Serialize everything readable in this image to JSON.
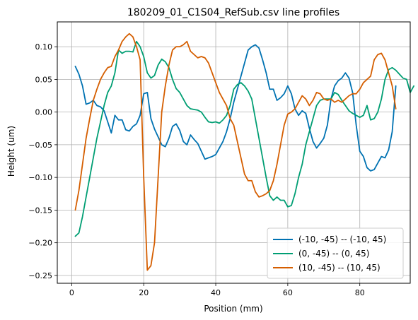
{
  "chart_data": {
    "type": "line",
    "title": "180209_01_C1S04_RefSub.csv line profiles",
    "xlabel": "Position (mm)",
    "ylabel": "Height (um)",
    "xlim": [
      -4,
      94
    ],
    "ylim": [
      -0.262,
      0.138
    ],
    "xticks": [
      0,
      20,
      40,
      60,
      80
    ],
    "xtick_labels": [
      "0",
      "20",
      "40",
      "60",
      "80"
    ],
    "yticks": [
      -0.25,
      -0.2,
      -0.15,
      -0.1,
      -0.05,
      0.0,
      0.05,
      0.1
    ],
    "ytick_labels": [
      "−0.25",
      "−0.20",
      "−0.15",
      "−0.10",
      "−0.05",
      "0.00",
      "0.05",
      "0.10"
    ],
    "grid": true,
    "legend_position": "lower-right",
    "series": [
      {
        "name": "(-10, -45) -- (-10, 45)",
        "color": "#0072B2",
        "points": [
          [
            1,
            0.07
          ],
          [
            2,
            0.058
          ],
          [
            3,
            0.04
          ],
          [
            4,
            0.012
          ],
          [
            5,
            0.014
          ],
          [
            6,
            0.018
          ],
          [
            7,
            0.01
          ],
          [
            8,
            0.008
          ],
          [
            9,
            0.002
          ],
          [
            10,
            -0.015
          ],
          [
            11,
            -0.032
          ],
          [
            12,
            -0.005
          ],
          [
            13,
            -0.012
          ],
          [
            14,
            -0.012
          ],
          [
            15,
            -0.027
          ],
          [
            16,
            -0.029
          ],
          [
            17,
            -0.022
          ],
          [
            18,
            -0.018
          ],
          [
            19,
            -0.005
          ],
          [
            20,
            0.028
          ],
          [
            21,
            0.03
          ],
          [
            22,
            -0.01
          ],
          [
            23,
            -0.026
          ],
          [
            24,
            -0.038
          ],
          [
            25,
            -0.05
          ],
          [
            26,
            -0.053
          ],
          [
            27,
            -0.04
          ],
          [
            28,
            -0.022
          ],
          [
            29,
            -0.018
          ],
          [
            30,
            -0.028
          ],
          [
            31,
            -0.045
          ],
          [
            32,
            -0.05
          ],
          [
            33,
            -0.035
          ],
          [
            34,
            -0.042
          ],
          [
            35,
            -0.048
          ],
          [
            36,
            -0.06
          ],
          [
            37,
            -0.072
          ],
          [
            38,
            -0.07
          ],
          [
            39,
            -0.068
          ],
          [
            40,
            -0.065
          ],
          [
            41,
            -0.055
          ],
          [
            42,
            -0.045
          ],
          [
            43,
            -0.03
          ],
          [
            44,
            -0.01
          ],
          [
            45,
            0.015
          ],
          [
            46,
            0.035
          ],
          [
            47,
            0.055
          ],
          [
            48,
            0.075
          ],
          [
            49,
            0.095
          ],
          [
            50,
            0.1
          ],
          [
            51,
            0.103
          ],
          [
            52,
            0.098
          ],
          [
            53,
            0.08
          ],
          [
            54,
            0.06
          ],
          [
            55,
            0.035
          ],
          [
            56,
            0.035
          ],
          [
            57,
            0.018
          ],
          [
            58,
            0.022
          ],
          [
            59,
            0.028
          ],
          [
            60,
            0.04
          ],
          [
            61,
            0.028
          ],
          [
            62,
            0.005
          ],
          [
            63,
            -0.005
          ],
          [
            64,
            0.002
          ],
          [
            65,
            -0.002
          ],
          [
            66,
            -0.025
          ],
          [
            67,
            -0.045
          ],
          [
            68,
            -0.055
          ],
          [
            69,
            -0.048
          ],
          [
            70,
            -0.04
          ],
          [
            71,
            -0.02
          ],
          [
            72,
            0.02
          ],
          [
            73,
            0.04
          ],
          [
            74,
            0.048
          ],
          [
            75,
            0.052
          ],
          [
            76,
            0.06
          ],
          [
            77,
            0.052
          ],
          [
            78,
            0.03
          ],
          [
            79,
            -0.02
          ],
          [
            80,
            -0.06
          ],
          [
            81,
            -0.068
          ],
          [
            82,
            -0.085
          ],
          [
            83,
            -0.09
          ],
          [
            84,
            -0.088
          ],
          [
            85,
            -0.078
          ],
          [
            86,
            -0.068
          ],
          [
            87,
            -0.07
          ],
          [
            88,
            -0.058
          ],
          [
            89,
            -0.03
          ],
          [
            90,
            0.04
          ]
        ]
      },
      {
        "name": "(0, -45) -- (0, 45)",
        "color": "#009E73",
        "points": [
          [
            1,
            -0.19
          ],
          [
            2,
            -0.185
          ],
          [
            3,
            -0.16
          ],
          [
            4,
            -0.13
          ],
          [
            5,
            -0.1
          ],
          [
            6,
            -0.07
          ],
          [
            7,
            -0.04
          ],
          [
            8,
            -0.015
          ],
          [
            9,
            0.01
          ],
          [
            10,
            0.03
          ],
          [
            11,
            0.04
          ],
          [
            12,
            0.06
          ],
          [
            13,
            0.095
          ],
          [
            14,
            0.09
          ],
          [
            15,
            0.093
          ],
          [
            16,
            0.093
          ],
          [
            17,
            0.092
          ],
          [
            18,
            0.108
          ],
          [
            19,
            0.1
          ],
          [
            20,
            0.085
          ],
          [
            21,
            0.06
          ],
          [
            22,
            0.052
          ],
          [
            23,
            0.056
          ],
          [
            24,
            0.072
          ],
          [
            25,
            0.081
          ],
          [
            26,
            0.077
          ],
          [
            27,
            0.068
          ],
          [
            28,
            0.05
          ],
          [
            29,
            0.036
          ],
          [
            30,
            0.03
          ],
          [
            31,
            0.02
          ],
          [
            32,
            0.01
          ],
          [
            33,
            0.005
          ],
          [
            34,
            0.004
          ],
          [
            35,
            0.003
          ],
          [
            36,
            0.0
          ],
          [
            37,
            -0.008
          ],
          [
            38,
            -0.015
          ],
          [
            39,
            -0.016
          ],
          [
            40,
            -0.015
          ],
          [
            41,
            -0.017
          ],
          [
            42,
            -0.012
          ],
          [
            43,
            -0.005
          ],
          [
            44,
            0.01
          ],
          [
            45,
            0.035
          ],
          [
            46,
            0.042
          ],
          [
            47,
            0.045
          ],
          [
            48,
            0.04
          ],
          [
            49,
            0.032
          ],
          [
            50,
            0.02
          ],
          [
            51,
            -0.01
          ],
          [
            52,
            -0.04
          ],
          [
            53,
            -0.07
          ],
          [
            54,
            -0.1
          ],
          [
            55,
            -0.128
          ],
          [
            56,
            -0.135
          ],
          [
            57,
            -0.13
          ],
          [
            58,
            -0.135
          ],
          [
            59,
            -0.135
          ],
          [
            60,
            -0.145
          ],
          [
            61,
            -0.143
          ],
          [
            62,
            -0.125
          ],
          [
            63,
            -0.1
          ],
          [
            64,
            -0.08
          ],
          [
            65,
            -0.05
          ],
          [
            66,
            -0.03
          ],
          [
            67,
            -0.01
          ],
          [
            68,
            0.01
          ],
          [
            69,
            0.018
          ],
          [
            70,
            0.02
          ],
          [
            71,
            0.02
          ],
          [
            72,
            0.02
          ],
          [
            73,
            0.03
          ],
          [
            74,
            0.027
          ],
          [
            75,
            0.018
          ],
          [
            76,
            0.01
          ],
          [
            77,
            0.002
          ],
          [
            78,
            -0.002
          ],
          [
            79,
            -0.005
          ],
          [
            80,
            -0.008
          ],
          [
            81,
            -0.005
          ],
          [
            82,
            0.01
          ],
          [
            83,
            -0.012
          ],
          [
            84,
            -0.01
          ],
          [
            85,
            0.0
          ],
          [
            86,
            0.02
          ],
          [
            87,
            0.05
          ],
          [
            88,
            0.065
          ],
          [
            89,
            0.068
          ],
          [
            90,
            0.064
          ],
          [
            91,
            0.058
          ],
          [
            92,
            0.052
          ],
          [
            93,
            0.05
          ],
          [
            94,
            0.03
          ],
          [
            95,
            0.04
          ]
        ]
      },
      {
        "name": "(10, -45) -- (10, 45)",
        "color": "#D55E00",
        "points": [
          [
            1,
            -0.15
          ],
          [
            2,
            -0.12
          ],
          [
            3,
            -0.08
          ],
          [
            4,
            -0.04
          ],
          [
            5,
            -0.01
          ],
          [
            6,
            0.018
          ],
          [
            7,
            0.035
          ],
          [
            8,
            0.05
          ],
          [
            9,
            0.06
          ],
          [
            10,
            0.068
          ],
          [
            11,
            0.07
          ],
          [
            12,
            0.085
          ],
          [
            13,
            0.095
          ],
          [
            14,
            0.108
          ],
          [
            15,
            0.115
          ],
          [
            16,
            0.12
          ],
          [
            17,
            0.115
          ],
          [
            18,
            0.1
          ],
          [
            19,
            0.08
          ],
          [
            20,
            -0.1
          ],
          [
            21,
            -0.242
          ],
          [
            22,
            -0.235
          ],
          [
            23,
            -0.2
          ],
          [
            24,
            -0.1
          ],
          [
            25,
            0.0
          ],
          [
            26,
            0.04
          ],
          [
            27,
            0.072
          ],
          [
            28,
            0.095
          ],
          [
            29,
            0.1
          ],
          [
            30,
            0.1
          ],
          [
            31,
            0.103
          ],
          [
            32,
            0.108
          ],
          [
            33,
            0.093
          ],
          [
            34,
            0.088
          ],
          [
            35,
            0.083
          ],
          [
            36,
            0.085
          ],
          [
            37,
            0.083
          ],
          [
            38,
            0.075
          ],
          [
            39,
            0.06
          ],
          [
            40,
            0.045
          ],
          [
            41,
            0.03
          ],
          [
            42,
            0.02
          ],
          [
            43,
            0.01
          ],
          [
            44,
            -0.01
          ],
          [
            45,
            -0.02
          ],
          [
            46,
            -0.045
          ],
          [
            47,
            -0.07
          ],
          [
            48,
            -0.095
          ],
          [
            49,
            -0.105
          ],
          [
            50,
            -0.105
          ],
          [
            51,
            -0.122
          ],
          [
            52,
            -0.13
          ],
          [
            53,
            -0.128
          ],
          [
            54,
            -0.125
          ],
          [
            55,
            -0.12
          ],
          [
            56,
            -0.105
          ],
          [
            57,
            -0.08
          ],
          [
            58,
            -0.05
          ],
          [
            59,
            -0.02
          ],
          [
            60,
            -0.003
          ],
          [
            61,
            0.0
          ],
          [
            62,
            0.005
          ],
          [
            63,
            0.015
          ],
          [
            64,
            0.025
          ],
          [
            65,
            0.02
          ],
          [
            66,
            0.01
          ],
          [
            67,
            0.018
          ],
          [
            68,
            0.03
          ],
          [
            69,
            0.028
          ],
          [
            70,
            0.02
          ],
          [
            71,
            0.018
          ],
          [
            72,
            0.02
          ],
          [
            73,
            0.015
          ],
          [
            74,
            0.018
          ],
          [
            75,
            0.015
          ],
          [
            76,
            0.02
          ],
          [
            77,
            0.025
          ],
          [
            78,
            0.028
          ],
          [
            79,
            0.028
          ],
          [
            80,
            0.035
          ],
          [
            81,
            0.045
          ],
          [
            82,
            0.05
          ],
          [
            83,
            0.055
          ],
          [
            84,
            0.08
          ],
          [
            85,
            0.088
          ],
          [
            86,
            0.09
          ],
          [
            87,
            0.08
          ],
          [
            88,
            0.06
          ],
          [
            89,
            0.04
          ],
          [
            90,
            0.005
          ]
        ]
      }
    ]
  }
}
